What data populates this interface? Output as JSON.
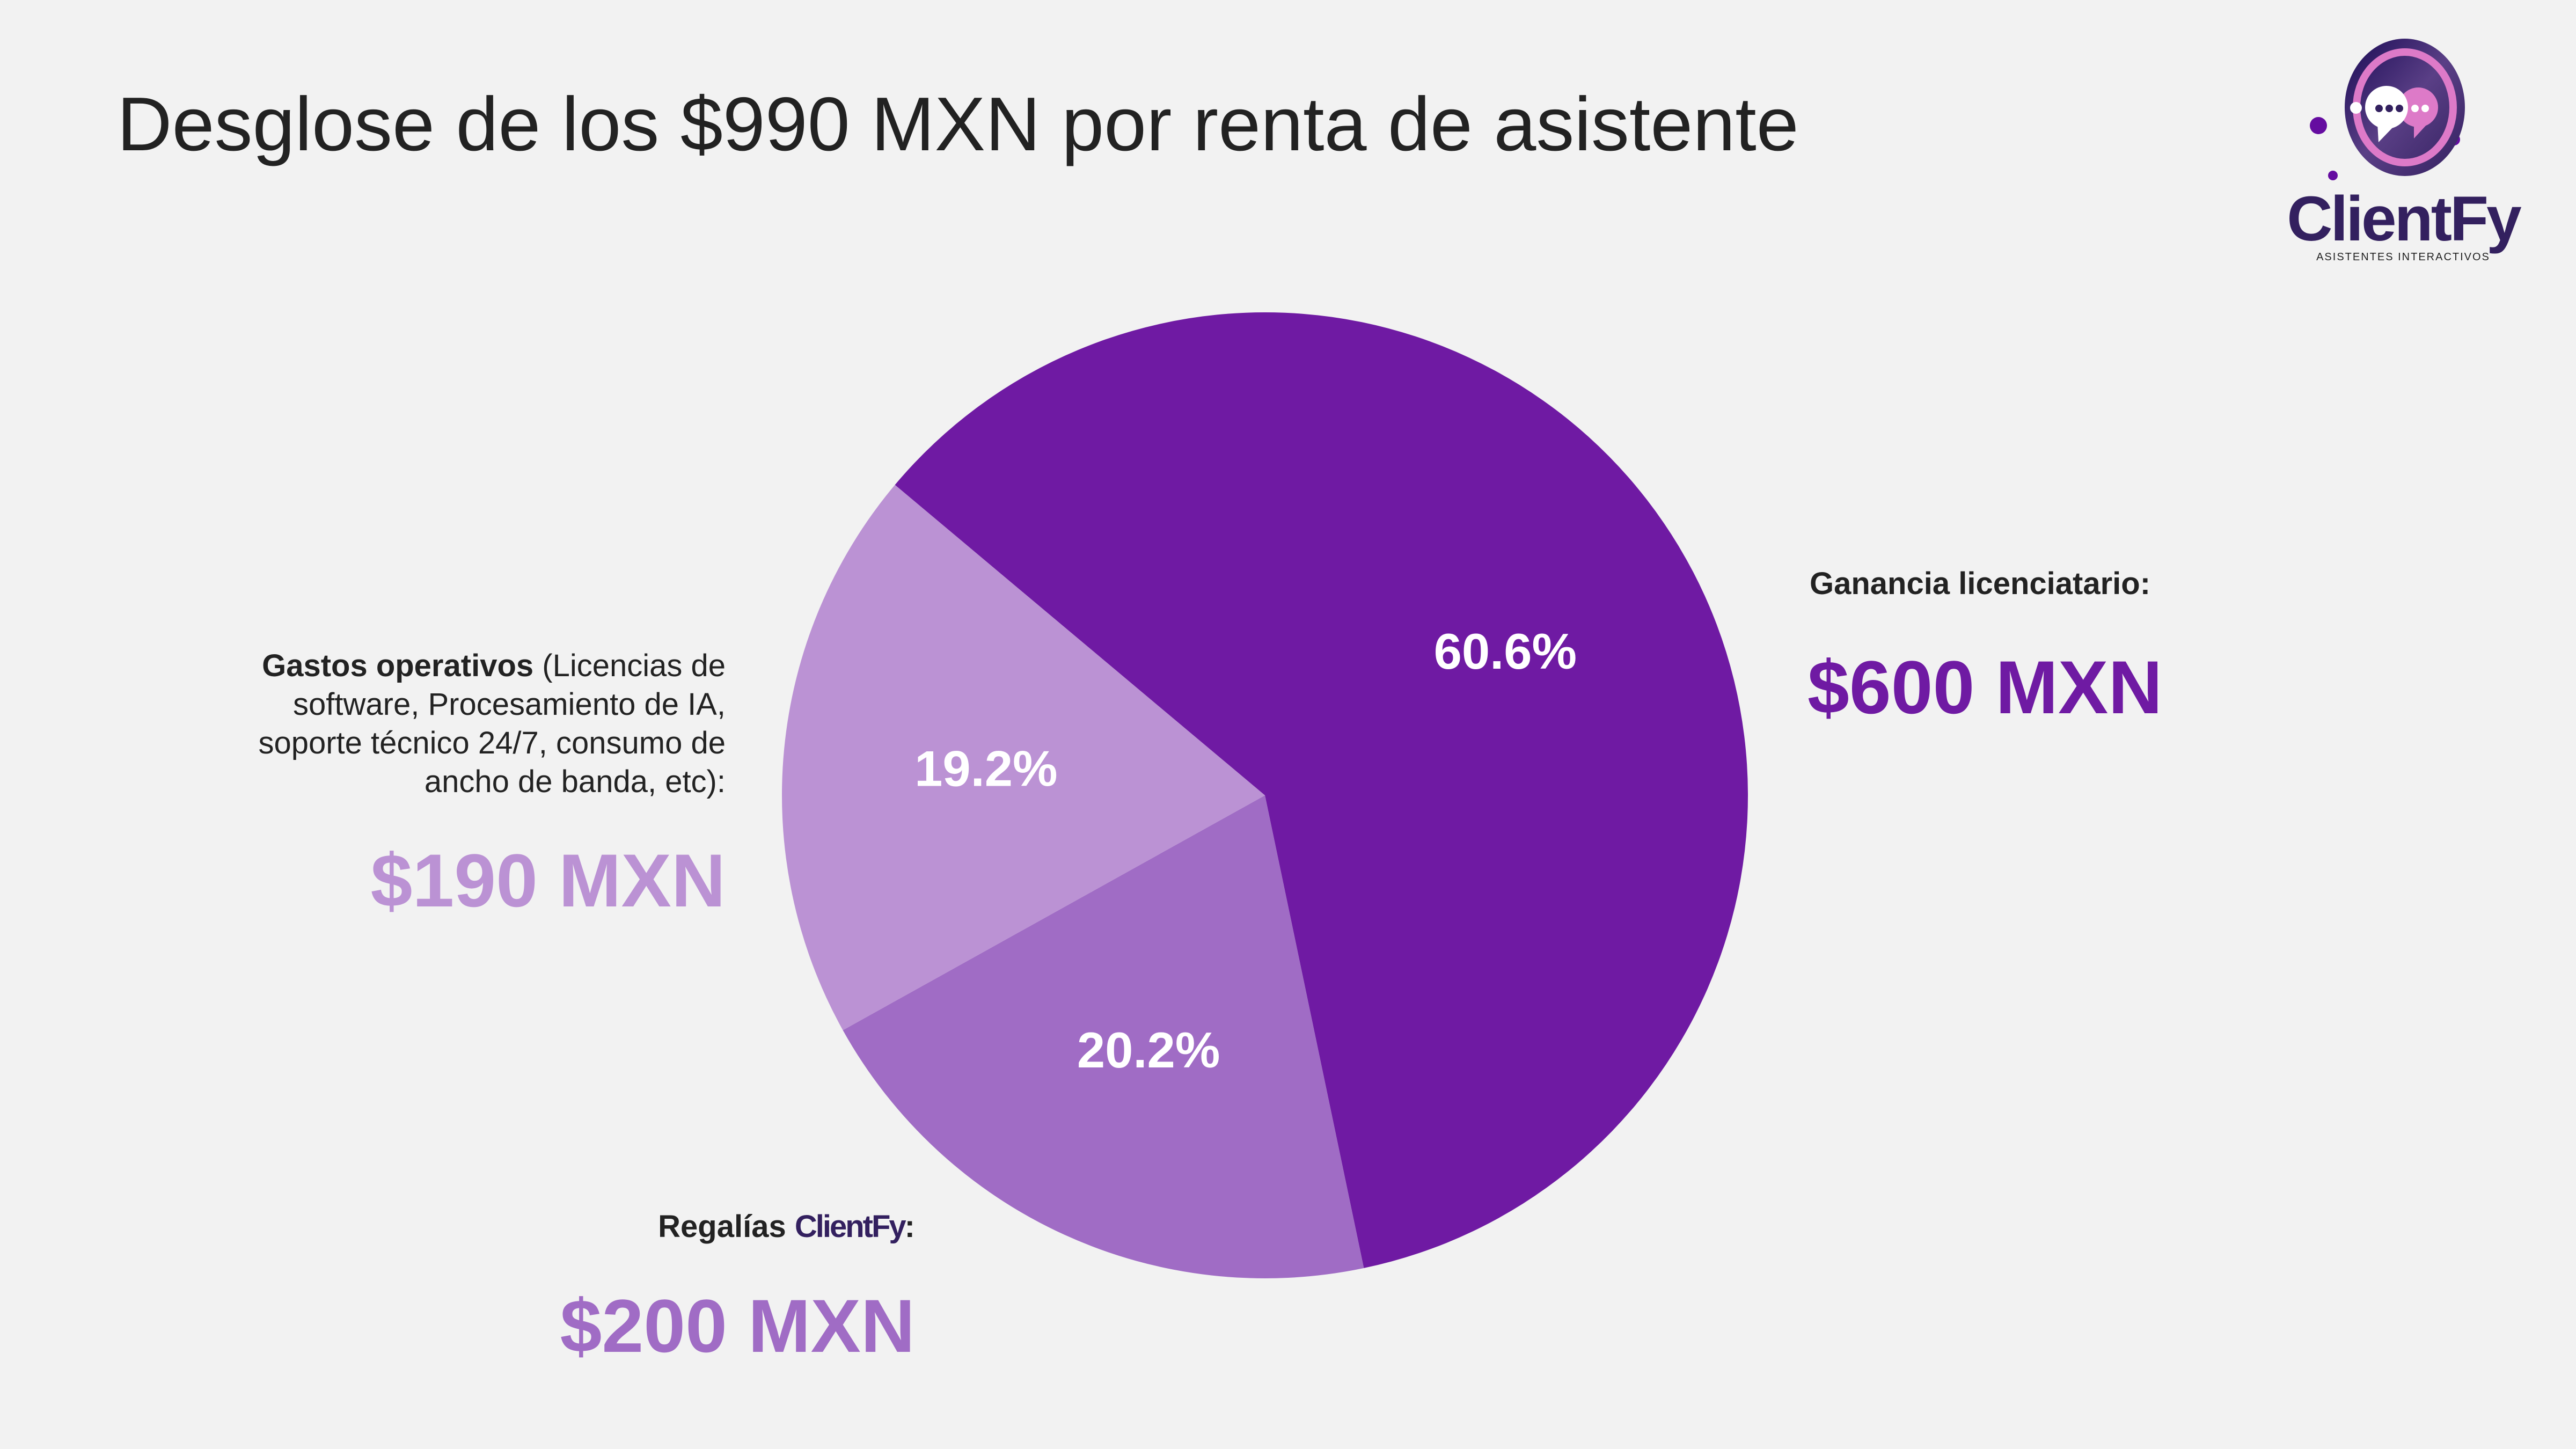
{
  "title": "Desglose de los $990 MXN por renta de asistente",
  "logo": {
    "brand": "ClientFy",
    "tagline": "ASISTENTES INTERACTIVOS"
  },
  "labels": {
    "ganancia": {
      "title": "Ganancia licenciatario:",
      "value": "$600 MXN"
    },
    "gastos": {
      "title_bold": "Gastos operativos",
      "title_rest": " (Licencias de software, Procesamiento de IA, soporte técnico 24/7, consumo de ancho de banda, etc):",
      "value": "$190 MXN"
    },
    "regalias": {
      "title": "Regalías",
      "brand": "ClientFy",
      "colon": ":",
      "value": "$200 MXN"
    }
  },
  "chart_data": {
    "type": "pie",
    "title": "Desglose de los $990 MXN por renta de asistente",
    "start_angle_deg": 310,
    "direction": "clockwise",
    "slices": [
      {
        "name": "Ganancia licenciatario",
        "value": 600,
        "label": "60.6%",
        "color": "#6f1aa3"
      },
      {
        "name": "Regalías ClientFy",
        "value": 200,
        "label": "20.2%",
        "color": "#a06cc5"
      },
      {
        "name": "Gastos operativos",
        "value": 190,
        "label": "19.2%",
        "color": "#bb92d4"
      }
    ]
  }
}
